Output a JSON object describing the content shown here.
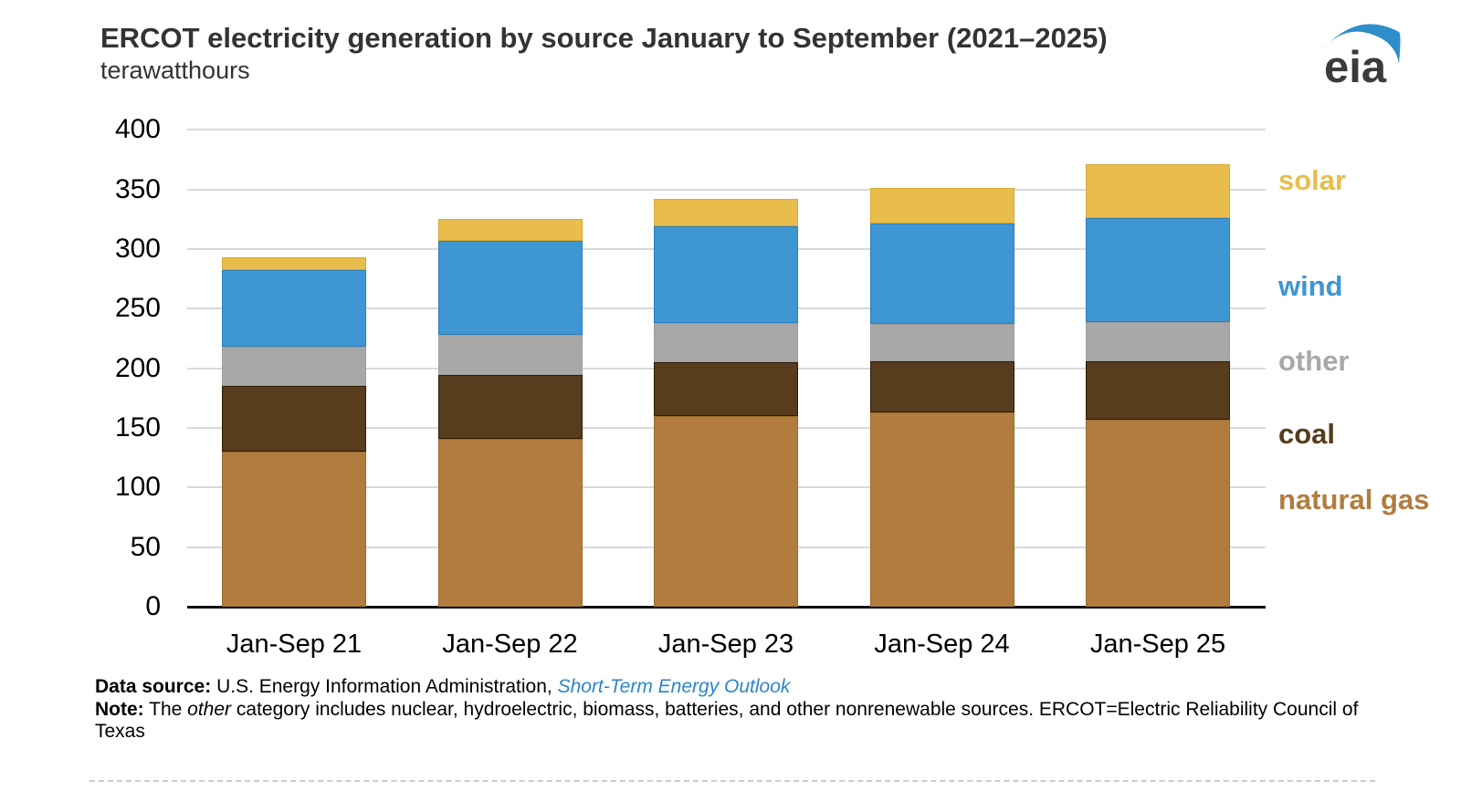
{
  "header": {
    "title": "ERCOT electricity generation by source January to September (2021–2025)",
    "subtitle": "terawatthours",
    "logo_text": "eia"
  },
  "chart_data": {
    "type": "bar",
    "variant": "stacked-column",
    "title": "ERCOT electricity generation by source January to September (2021–2025)",
    "subtitle_unit": "terawatthours",
    "categories": [
      "Jan-Sep 21",
      "Jan-Sep 22",
      "Jan-Sep 23",
      "Jan-Sep 24",
      "Jan-Sep 25"
    ],
    "series": [
      {
        "name": "natural gas",
        "values": [
          130,
          141,
          160,
          163,
          157
        ],
        "color": "#b27c3f",
        "border": "#9c6a2c"
      },
      {
        "name": "coal",
        "values": [
          55,
          53,
          45,
          43,
          49
        ],
        "color": "#573c1e",
        "border": "#301b07"
      },
      {
        "name": "other",
        "values": [
          33,
          34,
          33,
          31,
          33
        ],
        "color": "#a8a8a8",
        "border": "#9d9d9d"
      },
      {
        "name": "wind",
        "values": [
          64,
          79,
          81,
          84,
          87
        ],
        "color": "#3e96d3",
        "border": "#2a7fbd"
      },
      {
        "name": "solar",
        "values": [
          11,
          18,
          23,
          30,
          45
        ],
        "color": "#e9bd4c",
        "border": "#d8a930"
      }
    ],
    "totals": [
      293,
      325,
      342,
      351,
      371
    ],
    "yticks": [
      0,
      50,
      100,
      150,
      200,
      250,
      300,
      350,
      400
    ],
    "ylim": [
      0,
      400
    ],
    "xlabel": "",
    "ylabel": "terawatthours",
    "grid": "horizontal",
    "legend_position": "right",
    "legend": [
      "solar",
      "wind",
      "other",
      "coal",
      "natural gas"
    ]
  },
  "footer": {
    "data_source_label": "Data source:",
    "data_source_text": "U.S. Energy Information Administration,",
    "data_source_link": "Short-Term Energy Outlook",
    "note_label": "Note:",
    "note_text_1": "The",
    "note_text_italic": "other",
    "note_text_2": "category includes nuclear, hydroelectric, biomass, batteries, and other nonrenewable sources. ERCOT=Electric Reliability Council of",
    "note_text_3": "Texas"
  },
  "colors": {
    "title_text": "#333333",
    "link_blue": "#2b87c8",
    "gridline": "#d9d9d9",
    "axis_line": "#111111",
    "logo_swoosh": "#2f8dcb",
    "logo_text": "#3b3b3b",
    "solar": "#e9bd4c",
    "wind": "#3e96d3",
    "other": "#a8a8a8",
    "coal": "#573c1e",
    "natural_gas": "#b27c3f"
  }
}
